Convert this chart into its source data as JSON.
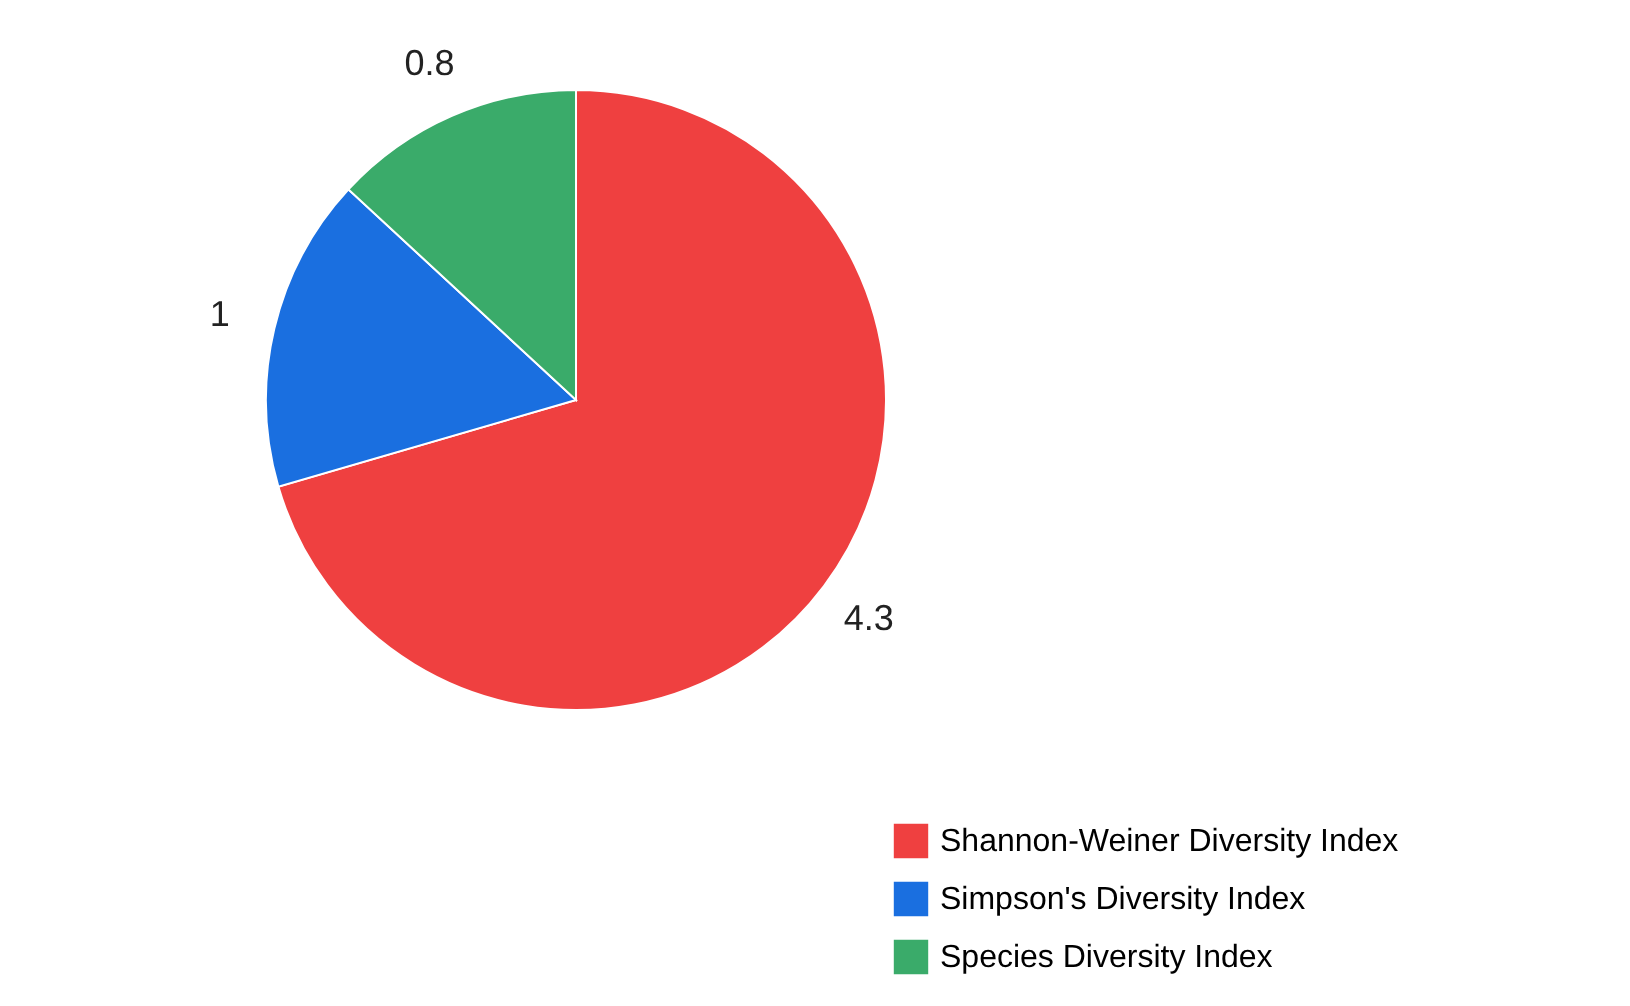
{
  "chart_data": {
    "type": "pie",
    "categories": [
      "Shannon-Weiner Diversity Index",
      "Simpson's Diversity Index",
      "Species Diversity Index"
    ],
    "values": [
      4.3,
      1,
      0.8
    ],
    "colors": [
      "#ef4040",
      "#1a6fe0",
      "#3aab6a"
    ],
    "data_labels": true,
    "legend": "bottom right"
  }
}
